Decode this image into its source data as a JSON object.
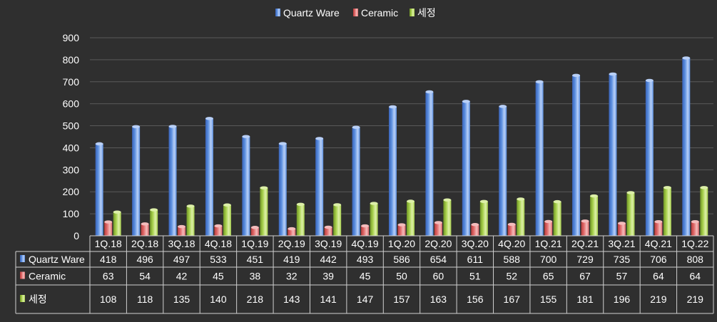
{
  "chart_data": {
    "type": "bar",
    "categories": [
      "1Q.18",
      "2Q.18",
      "3Q.18",
      "4Q.18",
      "1Q.19",
      "2Q.19",
      "3Q.19",
      "4Q.19",
      "1Q.20",
      "2Q.20",
      "3Q.20",
      "4Q.20",
      "1Q.21",
      "2Q.21",
      "3Q.21",
      "4Q.21",
      "1Q.22"
    ],
    "series": [
      {
        "name": "Quartz Ware",
        "values": [
          418,
          496,
          497,
          533,
          451,
          419,
          442,
          493,
          586,
          654,
          611,
          588,
          700,
          729,
          735,
          706,
          808
        ]
      },
      {
        "name": "Ceramic",
        "values": [
          63,
          54,
          42,
          45,
          38,
          32,
          39,
          45,
          50,
          60,
          51,
          52,
          65,
          67,
          57,
          64,
          64
        ]
      },
      {
        "name": "세정",
        "values": [
          108,
          118,
          135,
          140,
          218,
          143,
          141,
          147,
          157,
          163,
          156,
          167,
          155,
          181,
          196,
          219,
          219
        ]
      }
    ],
    "ylim": [
      0,
      900
    ],
    "yticks": [
      "0",
      "100",
      "200",
      "300",
      "400",
      "500",
      "600",
      "700",
      "800",
      "900"
    ],
    "grid": true,
    "legend_position": "top-center",
    "data_table": true,
    "colors": {
      "background": "#2f2f2f",
      "text": "#ffffff",
      "grid": "#5a5a5a",
      "series": [
        "#5b8fe0",
        "#e06a6a",
        "#a6cf4a"
      ],
      "series_light": [
        "#b9d0f7",
        "#f4bcbc",
        "#ddf0a8"
      ],
      "series_dark": [
        "#3a63b8",
        "#b83c3c",
        "#6f9426"
      ]
    }
  }
}
